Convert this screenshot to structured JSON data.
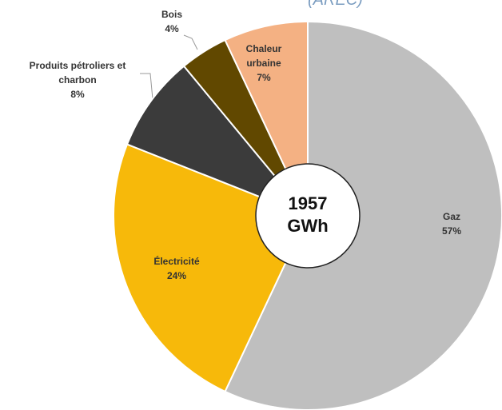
{
  "chart_data": {
    "type": "pie",
    "subtitle": "(AREC)",
    "center_label": [
      "1957",
      "GWh"
    ],
    "categories": [
      "Gaz",
      "Électricité",
      "Produits pétroliers et charbon",
      "Bois",
      "Chaleur urbaine"
    ],
    "values": [
      57,
      24,
      8,
      4,
      7
    ],
    "value_labels": [
      "57%",
      "24%",
      "8%",
      "4%",
      "7%"
    ],
    "colors": [
      "#bfbfbf",
      "#f7b90a",
      "#3b3b3b",
      "#614800",
      "#f4b183"
    ]
  }
}
